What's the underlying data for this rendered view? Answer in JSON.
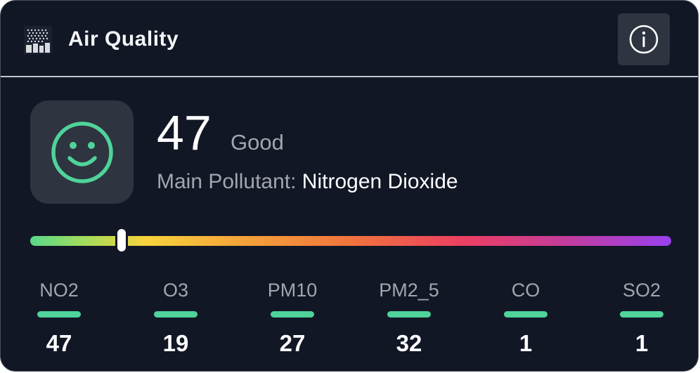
{
  "header": {
    "title": "Air Quality",
    "app_icon": "city-haze-icon",
    "info_icon": "info-icon"
  },
  "summary": {
    "aqi": "47",
    "level": "Good",
    "pollutant_label": "Main Pollutant:",
    "pollutant_name": "Nitrogen Dioxide",
    "face_icon": "smiley-face-icon",
    "face_color": "#4fd39a",
    "scale_position_fraction": 0.142
  },
  "pollutants": [
    {
      "name": "NO2",
      "value": "47"
    },
    {
      "name": "O3",
      "value": "19"
    },
    {
      "name": "PM10",
      "value": "27"
    },
    {
      "name": "PM2_5",
      "value": "32"
    },
    {
      "name": "CO",
      "value": "1"
    },
    {
      "name": "SO2",
      "value": "1"
    }
  ],
  "colors": {
    "background": "#121726",
    "good_accent": "#4fd39a",
    "tile": "#2e3440"
  }
}
